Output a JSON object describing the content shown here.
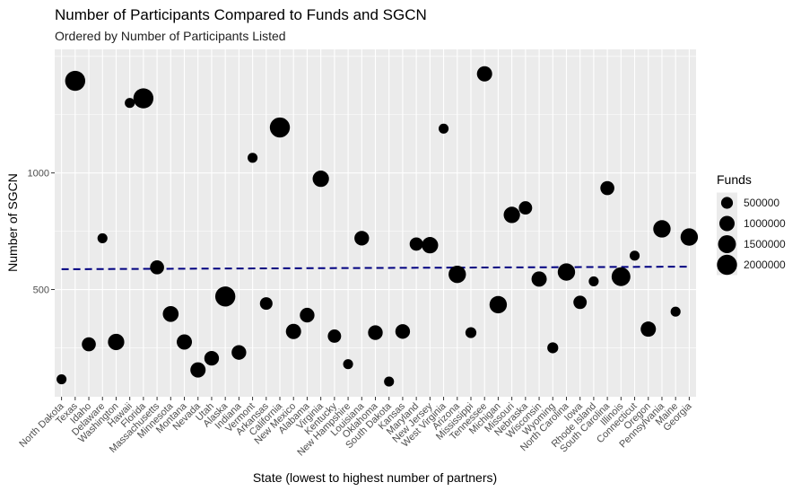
{
  "chart_data": {
    "type": "scatter",
    "title": "Number of Participants Compared to Funds and SGCN",
    "subtitle": "Ordered by Number of Participants Listed",
    "xlabel": "State (lowest to highest number of partners)",
    "ylabel": "Number of SGCN",
    "y_ticks": [
      500,
      1000
    ],
    "ylim": [
      40,
      1530
    ],
    "grid": true,
    "legend_position": "right",
    "legend": {
      "title": "Funds",
      "entries": [
        {
          "label": "500000",
          "value": 500000
        },
        {
          "label": "1000000",
          "value": 1000000
        },
        {
          "label": "1500000",
          "value": 1500000
        },
        {
          "label": "2000000",
          "value": 2000000
        }
      ]
    },
    "trend_line": {
      "type": "linear",
      "color": "#000080",
      "dash": "dashed",
      "y_start": 587,
      "y_end": 598
    },
    "categories": [
      "North Dakota",
      "Texas",
      "Idaho",
      "Delaware",
      "Washington",
      "Hawaii",
      "Florida",
      "Massachusetts",
      "Minnesota",
      "Montana",
      "Nevada",
      "Utah",
      "Alaska",
      "Indiana",
      "Vermont",
      "Arkansas",
      "California",
      "New Mexico",
      "Alabama",
      "Virginia",
      "Kentucky",
      "New Hampshire",
      "Louisiana",
      "Oklahoma",
      "South Dakota",
      "Kansas",
      "Maryland",
      "New Jersey",
      "West Virginia",
      "Arizona",
      "Mississippi",
      "Tennessee",
      "Michigan",
      "Missouri",
      "Nebraska",
      "Wisconsin",
      "Wyoming",
      "North Carolina",
      "Iowa",
      "Rhode Island",
      "South Carolina",
      "Illinois",
      "Connecticut",
      "Oregon",
      "Pennsylvania",
      "Maine",
      "Georgia"
    ],
    "points": [
      {
        "state": "North Dakota",
        "sgcn": 115,
        "funds": 300000
      },
      {
        "state": "Texas",
        "sgcn": 1395,
        "funds": 2000000
      },
      {
        "state": "Idaho",
        "sgcn": 265,
        "funds": 800000
      },
      {
        "state": "Delaware",
        "sgcn": 720,
        "funds": 300000
      },
      {
        "state": "Washington",
        "sgcn": 275,
        "funds": 1200000
      },
      {
        "state": "Hawaii",
        "sgcn": 1300,
        "funds": 300000
      },
      {
        "state": "Florida",
        "sgcn": 1320,
        "funds": 2000000
      },
      {
        "state": "Massachusetts",
        "sgcn": 595,
        "funds": 800000
      },
      {
        "state": "Minnesota",
        "sgcn": 395,
        "funds": 1100000
      },
      {
        "state": "Montana",
        "sgcn": 275,
        "funds": 1000000
      },
      {
        "state": "Nevada",
        "sgcn": 155,
        "funds": 1000000
      },
      {
        "state": "Utah",
        "sgcn": 205,
        "funds": 900000
      },
      {
        "state": "Alaska",
        "sgcn": 470,
        "funds": 2000000
      },
      {
        "state": "Indiana",
        "sgcn": 230,
        "funds": 900000
      },
      {
        "state": "Vermont",
        "sgcn": 1065,
        "funds": 300000
      },
      {
        "state": "Arkansas",
        "sgcn": 440,
        "funds": 600000
      },
      {
        "state": "California",
        "sgcn": 1195,
        "funds": 2000000
      },
      {
        "state": "New Mexico",
        "sgcn": 320,
        "funds": 1000000
      },
      {
        "state": "Alabama",
        "sgcn": 390,
        "funds": 900000
      },
      {
        "state": "Virginia",
        "sgcn": 975,
        "funds": 1200000
      },
      {
        "state": "Kentucky",
        "sgcn": 300,
        "funds": 700000
      },
      {
        "state": "New Hampshire",
        "sgcn": 180,
        "funds": 300000
      },
      {
        "state": "Louisiana",
        "sgcn": 720,
        "funds": 900000
      },
      {
        "state": "Oklahoma",
        "sgcn": 315,
        "funds": 900000
      },
      {
        "state": "South Dakota",
        "sgcn": 105,
        "funds": 300000
      },
      {
        "state": "Kansas",
        "sgcn": 320,
        "funds": 900000
      },
      {
        "state": "Maryland",
        "sgcn": 695,
        "funds": 700000
      },
      {
        "state": "New Jersey",
        "sgcn": 690,
        "funds": 1200000
      },
      {
        "state": "West Virginia",
        "sgcn": 1190,
        "funds": 300000
      },
      {
        "state": "Arizona",
        "sgcn": 565,
        "funds": 1400000
      },
      {
        "state": "Mississippi",
        "sgcn": 315,
        "funds": 400000
      },
      {
        "state": "Tennessee",
        "sgcn": 1425,
        "funds": 1000000
      },
      {
        "state": "Michigan",
        "sgcn": 435,
        "funds": 1400000
      },
      {
        "state": "Missouri",
        "sgcn": 820,
        "funds": 1200000
      },
      {
        "state": "Nebraska",
        "sgcn": 850,
        "funds": 700000
      },
      {
        "state": "Wisconsin",
        "sgcn": 545,
        "funds": 1000000
      },
      {
        "state": "Wyoming",
        "sgcn": 250,
        "funds": 400000
      },
      {
        "state": "North Carolina",
        "sgcn": 575,
        "funds": 1400000
      },
      {
        "state": "Iowa",
        "sgcn": 445,
        "funds": 700000
      },
      {
        "state": "Rhode Island",
        "sgcn": 535,
        "funds": 300000
      },
      {
        "state": "South Carolina",
        "sgcn": 935,
        "funds": 800000
      },
      {
        "state": "Illinois",
        "sgcn": 555,
        "funds": 1700000
      },
      {
        "state": "Connecticut",
        "sgcn": 645,
        "funds": 300000
      },
      {
        "state": "Oregon",
        "sgcn": 330,
        "funds": 1000000
      },
      {
        "state": "Pennsylvania",
        "sgcn": 760,
        "funds": 1400000
      },
      {
        "state": "Maine",
        "sgcn": 405,
        "funds": 300000
      },
      {
        "state": "Georgia",
        "sgcn": 725,
        "funds": 1400000
      }
    ]
  }
}
